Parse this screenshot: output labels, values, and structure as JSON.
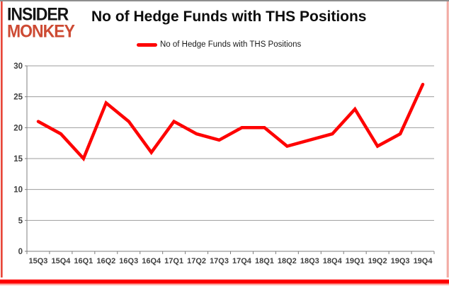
{
  "brand": {
    "line1": "INSIDER",
    "line2": "MONKEY",
    "line1_color": "#141414",
    "line2_color": "#cd4a33"
  },
  "header": {
    "title": "No of Hedge Funds with THS Positions"
  },
  "legend": {
    "label": "No of Hedge Funds with THS Positions",
    "swatch_color": "#fe0000"
  },
  "chart_data": {
    "type": "line",
    "title": "No of Hedge Funds with THS Positions",
    "categories": [
      "15Q3",
      "15Q4",
      "16Q1",
      "16Q2",
      "16Q3",
      "16Q4",
      "17Q1",
      "17Q2",
      "17Q3",
      "17Q4",
      "18Q1",
      "18Q2",
      "18Q3",
      "18Q4",
      "19Q1",
      "19Q2",
      "19Q3",
      "19Q4"
    ],
    "series": [
      {
        "name": "No of Hedge Funds with THS Positions",
        "values": [
          21,
          19,
          15,
          24,
          21,
          16,
          21,
          19,
          18,
          20,
          20,
          17,
          18,
          19,
          23,
          17,
          19,
          27
        ],
        "color": "#fe0000"
      }
    ],
    "xlabel": "",
    "ylabel": "",
    "ylim": [
      0,
      30
    ],
    "yticks": [
      0,
      5,
      10,
      15,
      20,
      25,
      30
    ],
    "grid": true,
    "legend_position": "top-center"
  },
  "style_colors": {
    "gridline": "#9d9d9d",
    "axis": "#7f7f7f",
    "tick_text": "#3f3f3f",
    "frame_red": "#fe0000",
    "frame_top_gray": "#8e8e8e"
  }
}
